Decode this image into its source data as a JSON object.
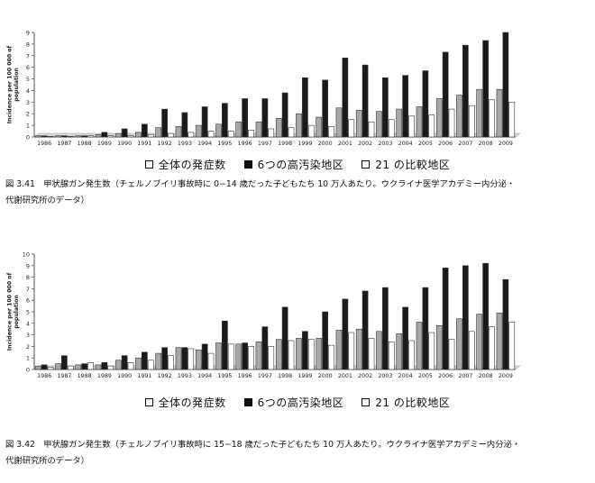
{
  "chart_data": [
    {
      "type": "bar",
      "ylabel": "Incidence per 100 000 of population",
      "ylim": [
        0,
        9
      ],
      "yticks": [
        0,
        1,
        2,
        3,
        4,
        5,
        6,
        7,
        8,
        9
      ],
      "categories": [
        "1986",
        "1987",
        "1988",
        "1989",
        "1990",
        "1991",
        "1992",
        "1993",
        "1994",
        "1995",
        "1996",
        "1997",
        "1998",
        "1999",
        "2000",
        "2001",
        "2002",
        "2003",
        "2004",
        "2005",
        "2006",
        "2007",
        "2008",
        "2009"
      ],
      "series": [
        {
          "name": "全体の発症数",
          "color": "#a8a8a8",
          "values": [
            0.1,
            0.1,
            0.1,
            0.2,
            0.3,
            0.4,
            0.8,
            0.9,
            1.0,
            1.1,
            1.3,
            1.3,
            1.6,
            2.0,
            1.7,
            2.5,
            2.3,
            2.2,
            2.4,
            2.6,
            3.3,
            3.6,
            4.1,
            4.1
          ]
        },
        {
          "name": "6つの高汚染地区",
          "color": "#1a1a1a",
          "values": [
            0.1,
            0.1,
            0.1,
            0.4,
            0.7,
            1.1,
            2.4,
            2.1,
            2.6,
            2.9,
            3.3,
            3.3,
            3.8,
            5.1,
            4.9,
            6.8,
            6.2,
            5.1,
            5.3,
            5.7,
            7.3,
            7.9,
            8.3,
            9.0
          ]
        },
        {
          "name": "21 の比較地区",
          "color": "#ffffff",
          "values": [
            0.05,
            0.05,
            0.1,
            0.1,
            0.1,
            0.2,
            0.3,
            0.4,
            0.5,
            0.5,
            0.6,
            0.7,
            0.8,
            1.0,
            0.9,
            1.5,
            1.3,
            1.5,
            1.8,
            1.9,
            2.4,
            2.7,
            3.2,
            3.0
          ]
        }
      ],
      "legend_placement": "bottom"
    },
    {
      "type": "bar",
      "ylabel": "Incidence per 100 000 of population",
      "ylim": [
        0,
        10
      ],
      "yticks": [
        0,
        1,
        2,
        3,
        4,
        5,
        6,
        7,
        8,
        9,
        10
      ],
      "categories": [
        "1986",
        "1987",
        "1988",
        "1989",
        "1990",
        "1991",
        "1992",
        "1993",
        "1994",
        "1995",
        "1996",
        "1997",
        "1998",
        "1999",
        "2000",
        "2001",
        "2002",
        "2003",
        "2004",
        "2005",
        "2006",
        "2007",
        "2008",
        "2009"
      ],
      "series": [
        {
          "name": "全体の発症数",
          "color": "#a8a8a8",
          "values": [
            0.3,
            0.5,
            0.4,
            0.4,
            0.8,
            1.0,
            1.4,
            1.9,
            1.7,
            2.3,
            2.2,
            2.4,
            2.6,
            2.7,
            2.7,
            3.4,
            3.5,
            3.3,
            3.1,
            4.1,
            3.8,
            4.4,
            4.8,
            4.9
          ]
        },
        {
          "name": "6つの高汚染地区",
          "color": "#1a1a1a",
          "values": [
            0.4,
            1.2,
            0.5,
            0.6,
            1.2,
            1.5,
            1.9,
            1.9,
            2.2,
            4.2,
            2.3,
            3.7,
            5.4,
            3.3,
            5.0,
            6.1,
            6.8,
            7.1,
            5.4,
            7.1,
            8.8,
            9.0,
            9.2,
            7.8
          ]
        },
        {
          "name": "21 の比較地区",
          "color": "#ffffff",
          "values": [
            0.2,
            0.3,
            0.6,
            0.3,
            0.6,
            0.8,
            1.2,
            1.8,
            1.4,
            2.2,
            2.0,
            2.0,
            2.5,
            2.6,
            2.1,
            3.2,
            2.7,
            2.4,
            2.5,
            3.2,
            2.6,
            3.3,
            3.7,
            4.1
          ]
        }
      ],
      "legend_placement": "bottom"
    }
  ],
  "legend": {
    "all": "全体の発症数",
    "high": "6つの高汚染地区",
    "cmp": "21 の比較地区"
  },
  "captions": {
    "fig1_line1": "図 3.41　甲状腺ガン発生数（チェルノブイリ事故時に 0−14 歳だった子どもたち 10 万人あたり。ウクライナ医学アカデミー内分泌・",
    "fig1_line2": "代謝研究所のデータ）",
    "fig2_line1": "図 3.42　甲状腺ガン発生数（チェルノブイリ事故時に 15−18 歳だった子どもたち 10 万人あたり。ウクライナ医学アカデミー内分泌・",
    "fig2_line2": "代謝研究所のデータ）"
  }
}
